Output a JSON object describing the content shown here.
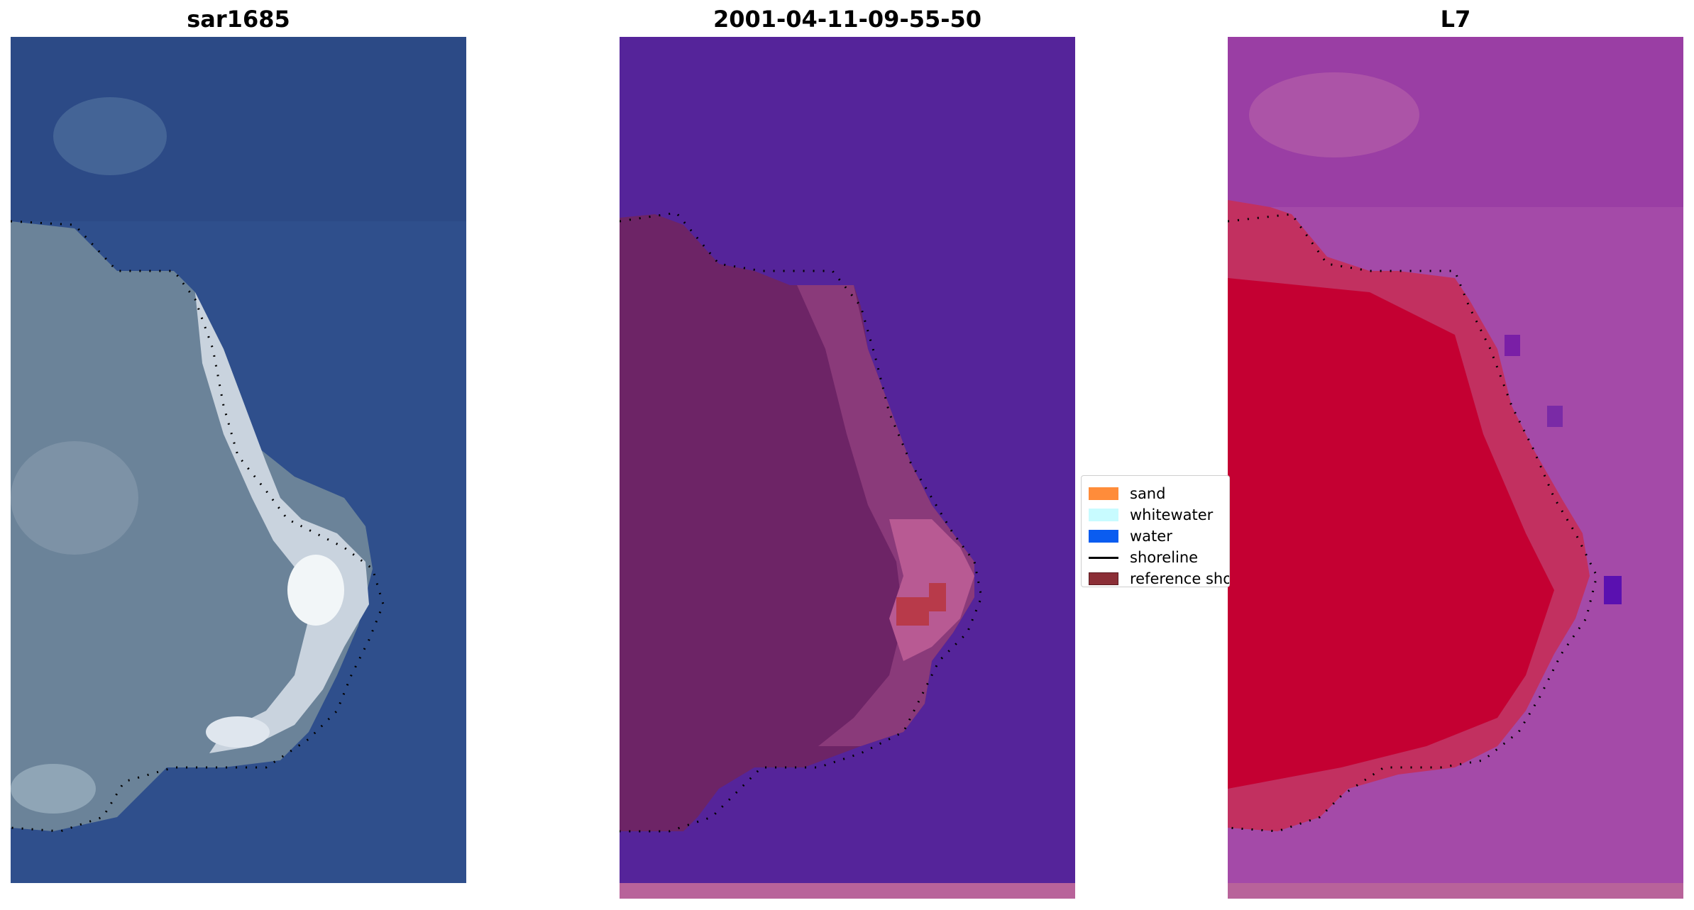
{
  "panels": [
    {
      "title": "sar1685"
    },
    {
      "title": "2001-04-11-09-55-50"
    },
    {
      "title": "L7"
    }
  ],
  "legend": {
    "items": [
      {
        "label": "sand",
        "color": "#ff8c3a",
        "kind": "patch"
      },
      {
        "label": "whitewater",
        "color": "#c8fbff",
        "kind": "patch"
      },
      {
        "label": "water",
        "color": "#0a5cf0",
        "kind": "patch"
      },
      {
        "label": "shoreline",
        "color": "#000000",
        "kind": "line"
      },
      {
        "label": "reference shoreline",
        "color": "#8b2e36",
        "kind": "patch"
      }
    ]
  },
  "colors": {
    "rgb_water": "#2f4f8c",
    "rgb_land": "#8899aa",
    "class_water": "#55249a",
    "class_land": "#6d2466",
    "index_water": "#a44aa8",
    "index_land": "#c8003a"
  }
}
